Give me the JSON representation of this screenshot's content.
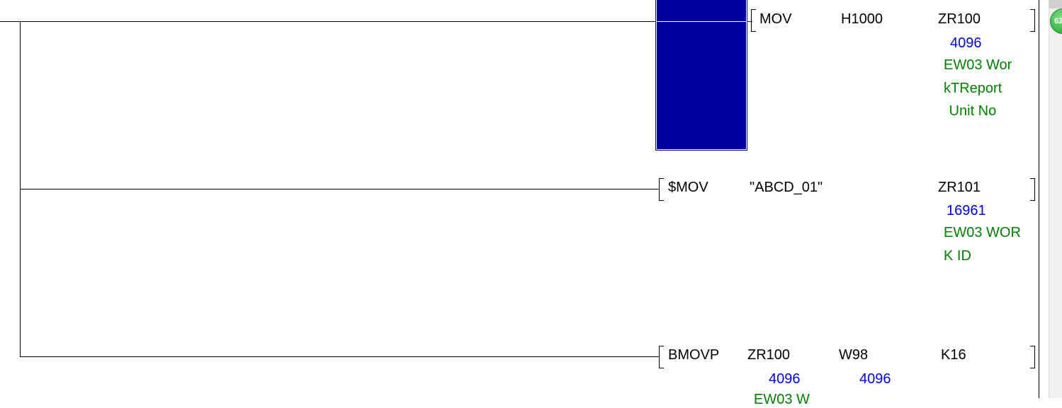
{
  "rungs": [
    {
      "instruction": "MOV",
      "operands": [
        "H1000",
        "ZR100"
      ],
      "values": [
        "4096"
      ],
      "comment": [
        "EW03 Wor",
        "kTReport",
        " Unit No"
      ]
    },
    {
      "instruction": "$MOV",
      "operands": [
        "\"ABCD_01\"",
        "ZR101"
      ],
      "values": [
        "16961"
      ],
      "comment": [
        "EW03 WOR",
        "K ID"
      ]
    },
    {
      "instruction": "BMOVP",
      "operands": [
        "ZR100",
        "W98",
        "K16"
      ],
      "values": [
        "4096",
        "4096"
      ],
      "comment": [
        "EW03 W"
      ]
    }
  ],
  "cursor_color": "#0000a0",
  "badge": {
    "text": "62",
    "color": "#3cb94a"
  }
}
